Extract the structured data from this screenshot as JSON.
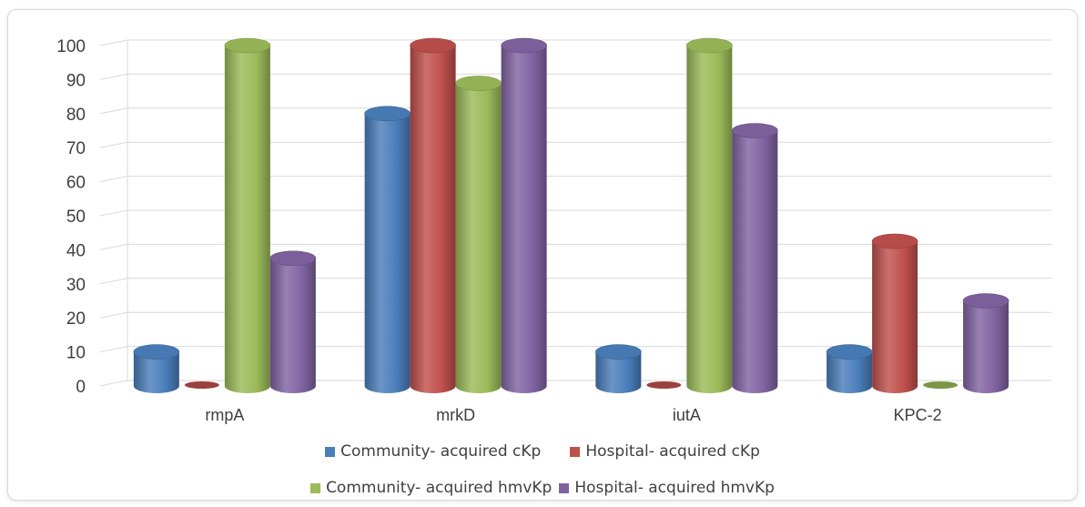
{
  "chart_data": {
    "type": "bar",
    "categories": [
      "rmpA",
      "mrkD",
      "iutA",
      "KPC-2"
    ],
    "series": [
      {
        "name": "Community- acquired cKp",
        "color": "#4a7ebb",
        "values": [
          10,
          80,
          10,
          10
        ]
      },
      {
        "name": "Hospital- acquired cKp",
        "color": "#c0504d",
        "values": [
          0,
          100,
          0,
          42.5
        ]
      },
      {
        "name": "Community- acquired hmvKp",
        "color": "#9bbb59",
        "values": [
          100,
          88.9,
          100,
          0
        ]
      },
      {
        "name": "Hospital- acquired hmvKp",
        "color": "#8064a2",
        "values": [
          37.5,
          100,
          75,
          25
        ]
      }
    ],
    "yticks": [
      "0",
      "10",
      "20",
      "30",
      "40",
      "50",
      "60",
      "70",
      "80",
      "90",
      "100"
    ],
    "ylim": [
      0,
      100
    ],
    "style": "3d-cylinder",
    "grid": true,
    "legend_position": "bottom"
  }
}
